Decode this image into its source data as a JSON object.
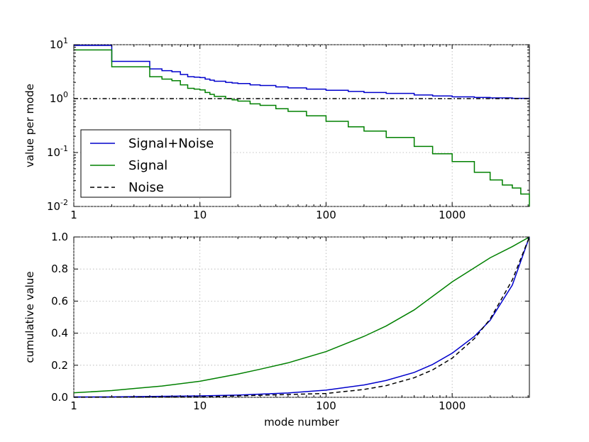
{
  "chart_data": [
    {
      "type": "line",
      "ylabel": "value per mode",
      "xscale": "log",
      "yscale": "log",
      "xlim": [
        1,
        4096
      ],
      "ylim": [
        0.01,
        10
      ],
      "grid": true,
      "x_ticks": [
        {
          "value": 1,
          "label": "1"
        },
        {
          "value": 10,
          "label": "10"
        },
        {
          "value": 100,
          "label": "100"
        },
        {
          "value": 1000,
          "label": "1000"
        }
      ],
      "y_ticks": [
        {
          "value": 0.01,
          "base": "10",
          "exp": "-2"
        },
        {
          "value": 0.1,
          "base": "10",
          "exp": "-1"
        },
        {
          "value": 1,
          "base": "10",
          "exp": "0"
        },
        {
          "value": 10,
          "base": "10",
          "exp": "1"
        }
      ],
      "legend": {
        "position": "lower-left",
        "entries": [
          {
            "name": "Signal+Noise",
            "color": "#0000cc",
            "style": "solid"
          },
          {
            "name": "Signal",
            "color": "#008000",
            "style": "solid"
          },
          {
            "name": "Noise",
            "color": "#000000",
            "style": "dashed"
          }
        ]
      },
      "series": [
        {
          "name": "Signal+Noise",
          "color": "#0000cc",
          "style": "solid",
          "step": true,
          "x": [
            1,
            2,
            3,
            4,
            5,
            6,
            7,
            8,
            9,
            10,
            11,
            12,
            13,
            14,
            16,
            18,
            20,
            25,
            30,
            40,
            50,
            70,
            100,
            150,
            200,
            300,
            500,
            700,
            1000,
            1500,
            2000,
            3000,
            4096
          ],
          "y": [
            9.7,
            4.9,
            4.9,
            3.55,
            3.3,
            3.15,
            2.8,
            2.55,
            2.5,
            2.45,
            2.3,
            2.2,
            2.1,
            2.1,
            2.0,
            1.95,
            1.9,
            1.8,
            1.75,
            1.65,
            1.58,
            1.5,
            1.43,
            1.36,
            1.3,
            1.25,
            1.17,
            1.12,
            1.08,
            1.05,
            1.03,
            1.01,
            1.0
          ]
        },
        {
          "name": "Signal",
          "color": "#008000",
          "style": "solid",
          "step": true,
          "x": [
            1,
            2,
            3,
            4,
            5,
            6,
            7,
            8,
            9,
            10,
            11,
            12,
            13,
            14,
            16,
            18,
            20,
            25,
            30,
            40,
            50,
            70,
            100,
            150,
            200,
            300,
            500,
            700,
            1000,
            1500,
            2000,
            2500,
            3000,
            3500,
            4096
          ],
          "y": [
            8.0,
            3.9,
            3.9,
            2.55,
            2.3,
            2.15,
            1.8,
            1.55,
            1.5,
            1.45,
            1.3,
            1.2,
            1.1,
            1.1,
            1.0,
            0.95,
            0.9,
            0.8,
            0.75,
            0.65,
            0.58,
            0.48,
            0.38,
            0.3,
            0.25,
            0.19,
            0.13,
            0.095,
            0.068,
            0.043,
            0.031,
            0.025,
            0.022,
            0.017,
            0.01
          ]
        },
        {
          "name": "Noise",
          "color": "#000000",
          "style": "dashed",
          "x": [
            1,
            4096
          ],
          "y": [
            1,
            1
          ]
        }
      ]
    },
    {
      "type": "line",
      "xlabel": "mode number",
      "ylabel": "cumulative value",
      "xscale": "log",
      "yscale": "linear",
      "xlim": [
        1,
        4096
      ],
      "ylim": [
        0,
        1
      ],
      "grid": true,
      "x_ticks": [
        {
          "value": 1,
          "label": "1"
        },
        {
          "value": 10,
          "label": "10"
        },
        {
          "value": 100,
          "label": "100"
        },
        {
          "value": 1000,
          "label": "1000"
        }
      ],
      "y_ticks": [
        {
          "value": 0.0,
          "label": "0.0"
        },
        {
          "value": 0.2,
          "label": "0.2"
        },
        {
          "value": 0.4,
          "label": "0.4"
        },
        {
          "value": 0.6,
          "label": "0.6"
        },
        {
          "value": 0.8,
          "label": "0.8"
        },
        {
          "value": 1.0,
          "label": "1.0"
        }
      ],
      "series": [
        {
          "name": "Signal+Noise",
          "color": "#0000cc",
          "style": "solid",
          "x": [
            1,
            2,
            5,
            10,
            20,
            50,
            100,
            200,
            300,
            500,
            700,
            1000,
            1500,
            2000,
            3000,
            4096
          ],
          "y": [
            0.002,
            0.003,
            0.006,
            0.009,
            0.014,
            0.027,
            0.045,
            0.077,
            0.105,
            0.155,
            0.205,
            0.275,
            0.38,
            0.48,
            0.7,
            1.0
          ]
        },
        {
          "name": "Signal",
          "color": "#008000",
          "style": "solid",
          "x": [
            1,
            2,
            3,
            5,
            10,
            20,
            30,
            50,
            100,
            200,
            300,
            500,
            1000,
            2000,
            3000,
            4096
          ],
          "y": [
            0.028,
            0.042,
            0.055,
            0.07,
            0.1,
            0.145,
            0.175,
            0.215,
            0.285,
            0.38,
            0.445,
            0.545,
            0.72,
            0.87,
            0.94,
            1.0
          ]
        },
        {
          "name": "Noise",
          "color": "#000000",
          "style": "dashed",
          "x": [
            1,
            10,
            100,
            200,
            300,
            500,
            700,
            1000,
            1500,
            2000,
            3000,
            4096
          ],
          "y": [
            0.0002,
            0.0024,
            0.024,
            0.049,
            0.073,
            0.122,
            0.171,
            0.244,
            0.366,
            0.488,
            0.732,
            1.0
          ]
        }
      ]
    }
  ]
}
